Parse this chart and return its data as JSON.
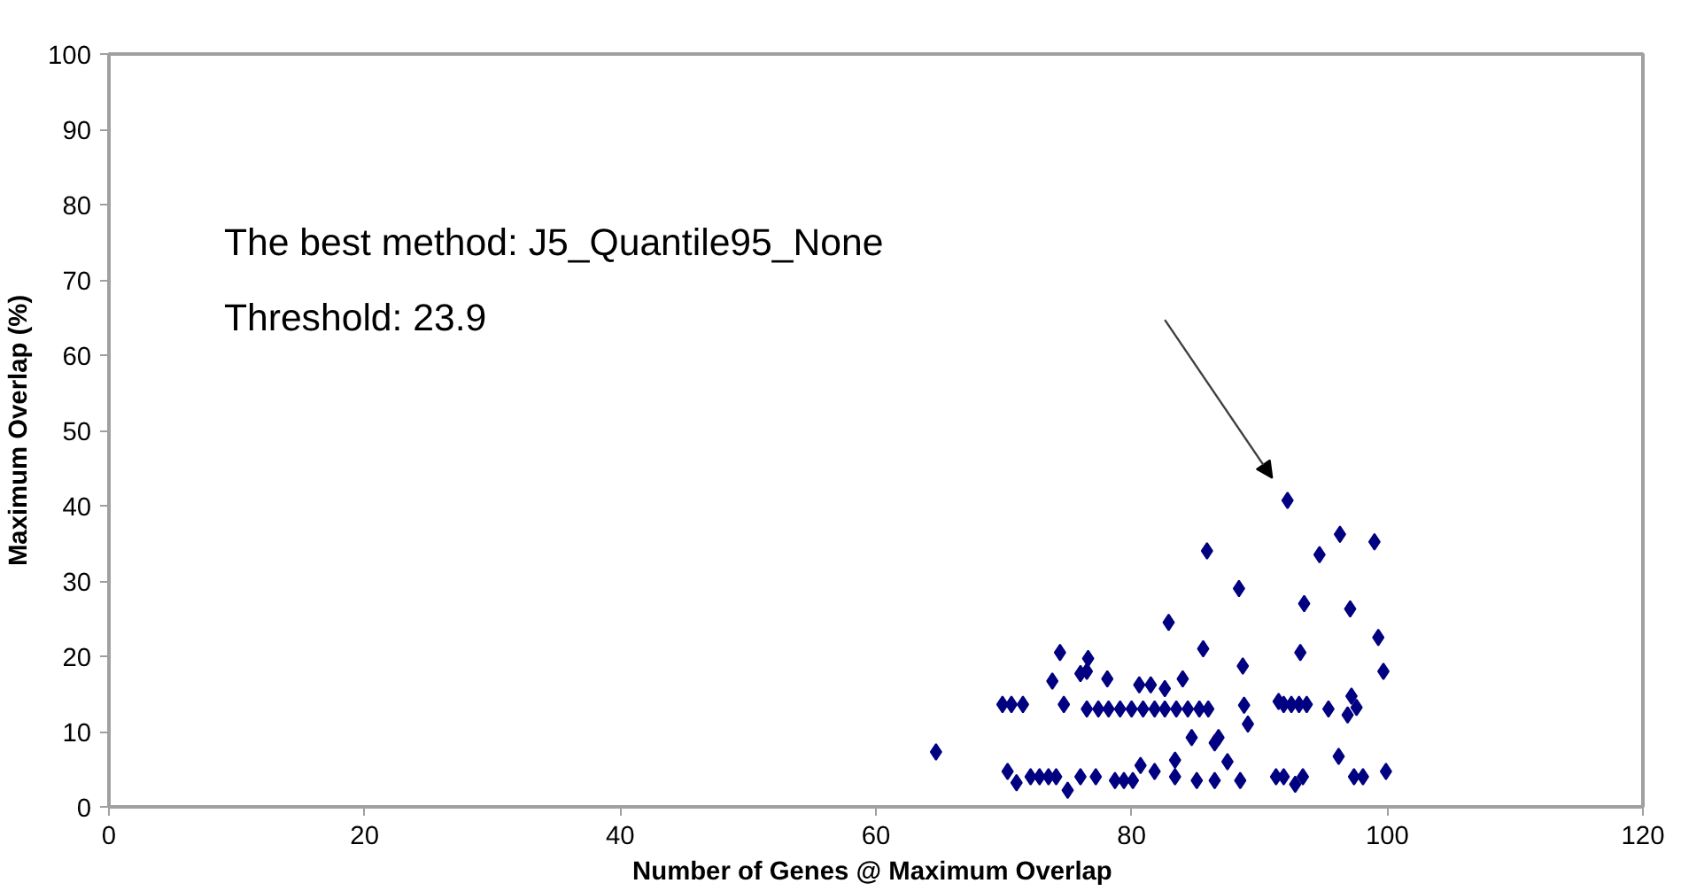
{
  "chart_data": {
    "type": "scatter",
    "xlabel": "Number of  Genes @ Maximum Overlap",
    "ylabel": "Maximum Overlap (%)",
    "annotations": [
      "The best method: J5_Quantile95_None",
      "Threshold: 23.9"
    ],
    "xlim": [
      0,
      120
    ],
    "xticks": [
      0,
      20,
      40,
      60,
      80,
      100,
      120
    ],
    "ylim": [
      0,
      100
    ],
    "yticks": [
      0,
      10,
      20,
      30,
      40,
      50,
      60,
      70,
      80,
      90,
      100
    ],
    "grid": false,
    "marker": "diamond",
    "series": [
      {
        "color": "#000080",
        "x": [
          64.7,
          69.9,
          70.6,
          71.5,
          74.7,
          73.8,
          74.4,
          76.6,
          76.0,
          76.5,
          78.1,
          76.5,
          77.4,
          78.2,
          79.1,
          80.0,
          80.9,
          81.8,
          82.6,
          83.5,
          84.4,
          85.3,
          86.0,
          80.6,
          81.5,
          82.6,
          84.0,
          82.9,
          85.6,
          85.9,
          88.4,
          92.2,
          88.7,
          89.1,
          84.7,
          86.5,
          86.8,
          87.5,
          83.4,
          80.7,
          81.8,
          70.3,
          71.0,
          72.1,
          72.8,
          73.5,
          74.1,
          75.0,
          76.0,
          77.2,
          78.7,
          79.4,
          80.1,
          83.4,
          85.1,
          86.5,
          88.5,
          91.3,
          88.8,
          91.5,
          96.3,
          99.0,
          94.7,
          93.5,
          97.1,
          99.3,
          93.2,
          99.7,
          97.2,
          91.9,
          92.5,
          93.1,
          93.7,
          95.4,
          96.9,
          97.6,
          96.2,
          91.9,
          93.4,
          92.8,
          97.4,
          98.1,
          99.9
        ],
        "values": [
          7.3,
          13.6,
          13.6,
          13.6,
          13.6,
          16.7,
          20.5,
          19.7,
          17.7,
          18.0,
          17.0,
          13.0,
          13.0,
          13.0,
          13.0,
          13.0,
          13.0,
          13.0,
          13.0,
          13.0,
          13.0,
          13.0,
          13.0,
          16.2,
          16.2,
          15.7,
          17.0,
          24.5,
          21.0,
          34.0,
          29.0,
          40.7,
          18.7,
          11.0,
          9.2,
          8.5,
          9.2,
          6.0,
          6.2,
          5.5,
          4.7,
          4.7,
          3.2,
          4.0,
          4.0,
          4.0,
          4.0,
          2.2,
          4.0,
          4.0,
          3.5,
          3.5,
          3.5,
          4.0,
          3.5,
          3.5,
          3.5,
          4.0,
          13.5,
          14.0,
          36.2,
          35.2,
          33.5,
          27.0,
          26.3,
          22.5,
          20.5,
          18.0,
          14.7,
          13.6,
          13.6,
          13.6,
          13.6,
          13.0,
          12.2,
          13.2,
          6.7,
          4.0,
          4.0,
          3.0,
          4.0,
          4.0,
          4.7
        ]
      }
    ]
  }
}
